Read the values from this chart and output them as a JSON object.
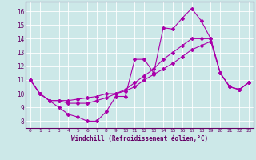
{
  "title": "",
  "xlabel": "Windchill (Refroidissement éolien,°C)",
  "xlim": [
    -0.5,
    23.5
  ],
  "ylim": [
    7.5,
    16.7
  ],
  "yticks": [
    8,
    9,
    10,
    11,
    12,
    13,
    14,
    15,
    16
  ],
  "xticks": [
    0,
    1,
    2,
    3,
    4,
    5,
    6,
    7,
    8,
    9,
    10,
    11,
    12,
    13,
    14,
    15,
    16,
    17,
    18,
    19,
    20,
    21,
    22,
    23
  ],
  "bg_color": "#cce8e8",
  "line_color": "#aa00aa",
  "line1_y": [
    11.0,
    10.0,
    9.5,
    9.0,
    8.5,
    8.3,
    8.0,
    8.0,
    8.7,
    9.8,
    9.8,
    12.5,
    12.5,
    11.5,
    14.8,
    14.7,
    15.5,
    16.2,
    15.3,
    14.0,
    11.5,
    10.5,
    10.3,
    10.8
  ],
  "line2_y": [
    11.0,
    10.0,
    9.5,
    9.5,
    9.3,
    9.3,
    9.3,
    9.5,
    9.7,
    10.0,
    10.3,
    10.8,
    11.3,
    11.8,
    12.5,
    13.0,
    13.5,
    14.0,
    14.0,
    14.0,
    11.5,
    10.5,
    10.3,
    10.8
  ],
  "line3_y": [
    11.0,
    10.0,
    9.5,
    9.5,
    9.5,
    9.6,
    9.7,
    9.8,
    10.0,
    10.0,
    10.2,
    10.5,
    11.0,
    11.4,
    11.8,
    12.2,
    12.7,
    13.2,
    13.5,
    13.8,
    11.5,
    10.5,
    10.3,
    10.8
  ]
}
